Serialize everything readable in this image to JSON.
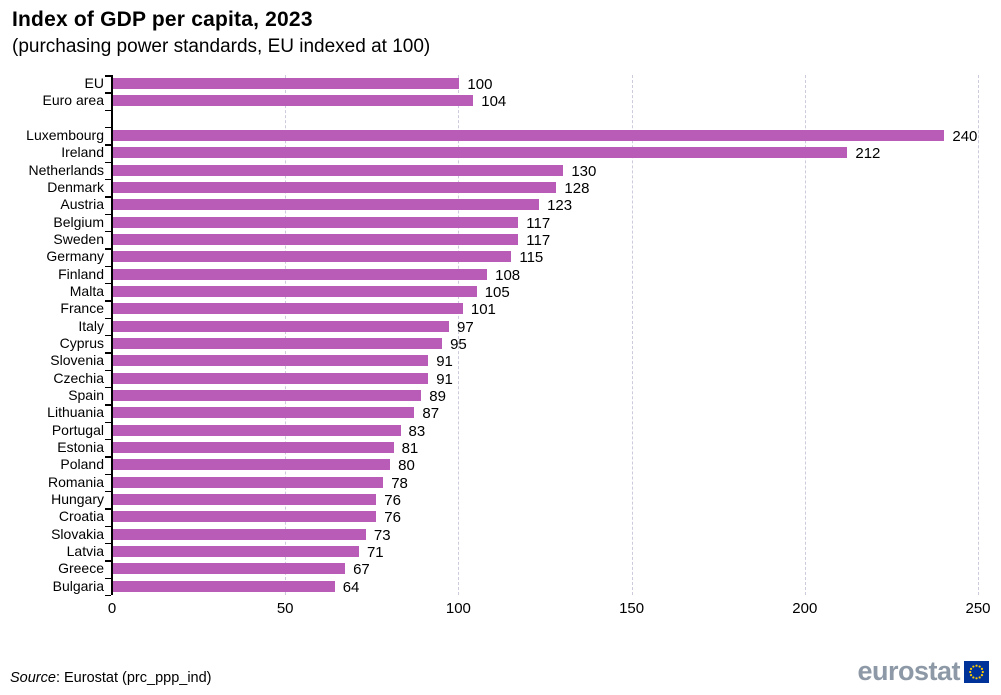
{
  "header": {
    "title": "Index of GDP per capita, 2023",
    "subtitle": "(purchasing power standards, EU indexed at 100)"
  },
  "chart_data": {
    "type": "bar",
    "orientation": "horizontal",
    "title": "Index of GDP per capita, 2023",
    "subtitle": "(purchasing power standards, EU indexed at 100)",
    "categories": [
      "EU",
      "Euro area",
      "Luxembourg",
      "Ireland",
      "Netherlands",
      "Denmark",
      "Austria",
      "Belgium",
      "Sweden",
      "Germany",
      "Finland",
      "Malta",
      "France",
      "Italy",
      "Cyprus",
      "Slovenia",
      "Czechia",
      "Spain",
      "Lithuania",
      "Portugal",
      "Estonia",
      "Poland",
      "Romania",
      "Hungary",
      "Croatia",
      "Slovakia",
      "Latvia",
      "Greece",
      "Bulgaria"
    ],
    "values": [
      100,
      104,
      240,
      212,
      130,
      128,
      123,
      117,
      117,
      115,
      108,
      105,
      101,
      97,
      95,
      91,
      91,
      89,
      87,
      83,
      81,
      80,
      78,
      76,
      76,
      73,
      71,
      67,
      64
    ],
    "separator_after": "Euro area",
    "xlim": [
      0,
      250
    ],
    "xticks": [
      0,
      50,
      100,
      150,
      200,
      250
    ],
    "grid": "vertical-dashed",
    "value_labels": true,
    "legend": "none",
    "bar_color": "#b85cb8",
    "grid_color": "#cfcadb",
    "axis_color": "#000000"
  },
  "footer": {
    "source_label": "Source",
    "source_text": ": Eurostat (prc_ppp_ind)",
    "logo_text": "eurostat",
    "logo_color": "#8d99a6",
    "flag_blue": "#003399",
    "flag_stars": "#ffcc00"
  }
}
